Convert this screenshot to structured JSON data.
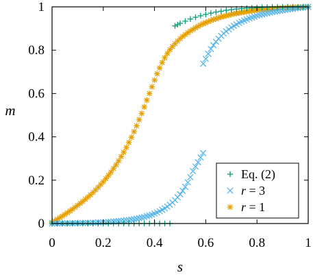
{
  "chart_data": {
    "type": "scatter",
    "xlabel": "s",
    "ylabel": "m",
    "xlim": [
      0,
      1
    ],
    "ylim": [
      0,
      1
    ],
    "x_ticks": [
      "0",
      "0.2",
      "0.4",
      "0.6",
      "0.8",
      "1"
    ],
    "y_ticks": [
      "0",
      "0.2",
      "0.4",
      "0.6",
      "0.8",
      "1"
    ],
    "grid": false,
    "legend_position": "bottom-right",
    "series": [
      {
        "name": "Eq. (2)",
        "marker": "plus",
        "color": "#009e73",
        "points": [
          [
            0.0,
            0.0
          ],
          [
            0.02,
            0.0
          ],
          [
            0.04,
            0.0
          ],
          [
            0.06,
            0.0
          ],
          [
            0.08,
            0.0
          ],
          [
            0.1,
            0.0
          ],
          [
            0.12,
            0.0
          ],
          [
            0.14,
            0.0
          ],
          [
            0.16,
            0.0
          ],
          [
            0.18,
            0.0
          ],
          [
            0.2,
            0.0
          ],
          [
            0.22,
            0.0
          ],
          [
            0.24,
            0.0
          ],
          [
            0.26,
            0.0
          ],
          [
            0.28,
            0.0
          ],
          [
            0.3,
            0.0
          ],
          [
            0.32,
            0.0
          ],
          [
            0.34,
            0.0
          ],
          [
            0.36,
            0.0
          ],
          [
            0.38,
            0.0
          ],
          [
            0.4,
            0.0
          ],
          [
            0.42,
            0.0
          ],
          [
            0.44,
            0.0
          ],
          [
            0.46,
            0.0
          ],
          [
            0.48,
            0.912
          ],
          [
            0.49,
            0.918
          ],
          [
            0.5,
            0.924
          ],
          [
            0.52,
            0.934
          ],
          [
            0.54,
            0.944
          ],
          [
            0.56,
            0.952
          ],
          [
            0.58,
            0.959
          ],
          [
            0.6,
            0.965
          ],
          [
            0.62,
            0.971
          ],
          [
            0.64,
            0.976
          ],
          [
            0.66,
            0.98
          ],
          [
            0.68,
            0.984
          ],
          [
            0.7,
            0.987
          ],
          [
            0.72,
            0.99
          ],
          [
            0.74,
            0.992
          ],
          [
            0.76,
            0.994
          ],
          [
            0.78,
            0.995
          ],
          [
            0.8,
            0.996
          ],
          [
            0.82,
            0.997
          ],
          [
            0.84,
            0.998
          ],
          [
            0.86,
            0.999
          ],
          [
            0.88,
            0.999
          ],
          [
            0.9,
            1.0
          ],
          [
            0.92,
            1.0
          ],
          [
            0.94,
            1.0
          ],
          [
            0.96,
            1.0
          ],
          [
            0.98,
            1.0
          ],
          [
            1.0,
            1.0
          ]
        ]
      },
      {
        "name": "r = 3",
        "marker": "cross",
        "color": "#56b4e9",
        "points": [
          [
            0.0,
            0.0
          ],
          [
            0.01,
            0.0
          ],
          [
            0.02,
            0.0
          ],
          [
            0.03,
            0.0
          ],
          [
            0.04,
            0.001
          ],
          [
            0.05,
            0.001
          ],
          [
            0.06,
            0.001
          ],
          [
            0.07,
            0.001
          ],
          [
            0.08,
            0.001
          ],
          [
            0.09,
            0.002
          ],
          [
            0.1,
            0.002
          ],
          [
            0.11,
            0.002
          ],
          [
            0.12,
            0.002
          ],
          [
            0.13,
            0.003
          ],
          [
            0.14,
            0.003
          ],
          [
            0.15,
            0.003
          ],
          [
            0.16,
            0.004
          ],
          [
            0.17,
            0.004
          ],
          [
            0.18,
            0.005
          ],
          [
            0.19,
            0.005
          ],
          [
            0.2,
            0.006
          ],
          [
            0.21,
            0.006
          ],
          [
            0.22,
            0.007
          ],
          [
            0.23,
            0.008
          ],
          [
            0.24,
            0.009
          ],
          [
            0.25,
            0.01
          ],
          [
            0.26,
            0.011
          ],
          [
            0.27,
            0.012
          ],
          [
            0.28,
            0.013
          ],
          [
            0.29,
            0.015
          ],
          [
            0.3,
            0.016
          ],
          [
            0.31,
            0.018
          ],
          [
            0.32,
            0.02
          ],
          [
            0.33,
            0.022
          ],
          [
            0.34,
            0.025
          ],
          [
            0.35,
            0.027
          ],
          [
            0.36,
            0.03
          ],
          [
            0.37,
            0.034
          ],
          [
            0.38,
            0.037
          ],
          [
            0.39,
            0.041
          ],
          [
            0.4,
            0.046
          ],
          [
            0.41,
            0.051
          ],
          [
            0.42,
            0.057
          ],
          [
            0.43,
            0.063
          ],
          [
            0.44,
            0.07
          ],
          [
            0.45,
            0.078
          ],
          [
            0.46,
            0.087
          ],
          [
            0.47,
            0.097
          ],
          [
            0.48,
            0.108
          ],
          [
            0.49,
            0.121
          ],
          [
            0.5,
            0.135
          ],
          [
            0.51,
            0.151
          ],
          [
            0.52,
            0.169
          ],
          [
            0.53,
            0.19
          ],
          [
            0.54,
            0.214
          ],
          [
            0.55,
            0.242
          ],
          [
            0.56,
            0.263
          ],
          [
            0.57,
            0.283
          ],
          [
            0.58,
            0.305
          ],
          [
            0.59,
            0.325
          ],
          [
            0.59,
            0.738
          ],
          [
            0.6,
            0.76
          ],
          [
            0.61,
            0.783
          ],
          [
            0.62,
            0.805
          ],
          [
            0.63,
            0.823
          ],
          [
            0.64,
            0.839
          ],
          [
            0.65,
            0.853
          ],
          [
            0.66,
            0.866
          ],
          [
            0.67,
            0.877
          ],
          [
            0.68,
            0.887
          ],
          [
            0.69,
            0.896
          ],
          [
            0.7,
            0.905
          ],
          [
            0.71,
            0.912
          ],
          [
            0.72,
            0.919
          ],
          [
            0.73,
            0.926
          ],
          [
            0.74,
            0.932
          ],
          [
            0.75,
            0.937
          ],
          [
            0.76,
            0.942
          ],
          [
            0.77,
            0.947
          ],
          [
            0.78,
            0.951
          ],
          [
            0.79,
            0.955
          ],
          [
            0.8,
            0.959
          ],
          [
            0.81,
            0.962
          ],
          [
            0.82,
            0.965
          ],
          [
            0.83,
            0.968
          ],
          [
            0.84,
            0.971
          ],
          [
            0.85,
            0.974
          ],
          [
            0.86,
            0.976
          ],
          [
            0.87,
            0.978
          ],
          [
            0.88,
            0.98
          ],
          [
            0.89,
            0.982
          ],
          [
            0.9,
            0.984
          ],
          [
            0.91,
            0.986
          ],
          [
            0.92,
            0.988
          ],
          [
            0.93,
            0.99
          ],
          [
            0.94,
            0.991
          ],
          [
            0.95,
            0.993
          ],
          [
            0.96,
            0.994
          ],
          [
            0.97,
            0.996
          ],
          [
            0.98,
            0.997
          ],
          [
            0.99,
            0.999
          ],
          [
            1.0,
            1.0
          ]
        ]
      },
      {
        "name": "r = 1",
        "marker": "star",
        "color": "#e69f00",
        "points": [
          [
            0.0,
            0.005
          ],
          [
            0.01,
            0.012
          ],
          [
            0.02,
            0.019
          ],
          [
            0.03,
            0.027
          ],
          [
            0.04,
            0.034
          ],
          [
            0.05,
            0.042
          ],
          [
            0.06,
            0.05
          ],
          [
            0.07,
            0.058
          ],
          [
            0.08,
            0.066
          ],
          [
            0.09,
            0.075
          ],
          [
            0.1,
            0.084
          ],
          [
            0.11,
            0.093
          ],
          [
            0.12,
            0.102
          ],
          [
            0.13,
            0.112
          ],
          [
            0.14,
            0.122
          ],
          [
            0.15,
            0.132
          ],
          [
            0.16,
            0.143
          ],
          [
            0.17,
            0.155
          ],
          [
            0.18,
            0.167
          ],
          [
            0.19,
            0.18
          ],
          [
            0.2,
            0.193
          ],
          [
            0.21,
            0.207
          ],
          [
            0.22,
            0.222
          ],
          [
            0.23,
            0.237
          ],
          [
            0.24,
            0.254
          ],
          [
            0.25,
            0.271
          ],
          [
            0.26,
            0.289
          ],
          [
            0.27,
            0.309
          ],
          [
            0.28,
            0.329
          ],
          [
            0.29,
            0.351
          ],
          [
            0.3,
            0.374
          ],
          [
            0.31,
            0.398
          ],
          [
            0.32,
            0.424
          ],
          [
            0.33,
            0.451
          ],
          [
            0.34,
            0.479
          ],
          [
            0.35,
            0.508
          ],
          [
            0.36,
            0.538
          ],
          [
            0.37,
            0.569
          ],
          [
            0.38,
            0.6
          ],
          [
            0.39,
            0.631
          ],
          [
            0.4,
            0.662
          ],
          [
            0.41,
            0.691
          ],
          [
            0.42,
            0.718
          ],
          [
            0.43,
            0.743
          ],
          [
            0.44,
            0.765
          ],
          [
            0.45,
            0.785
          ],
          [
            0.46,
            0.802
          ],
          [
            0.47,
            0.817
          ],
          [
            0.48,
            0.83
          ],
          [
            0.49,
            0.842
          ],
          [
            0.5,
            0.853
          ],
          [
            0.51,
            0.863
          ],
          [
            0.52,
            0.872
          ],
          [
            0.53,
            0.881
          ],
          [
            0.54,
            0.889
          ],
          [
            0.55,
            0.896
          ],
          [
            0.56,
            0.903
          ],
          [
            0.57,
            0.91
          ],
          [
            0.58,
            0.916
          ],
          [
            0.59,
            0.922
          ],
          [
            0.6,
            0.927
          ],
          [
            0.61,
            0.932
          ],
          [
            0.62,
            0.937
          ],
          [
            0.63,
            0.941
          ],
          [
            0.64,
            0.945
          ],
          [
            0.65,
            0.949
          ],
          [
            0.66,
            0.953
          ],
          [
            0.67,
            0.956
          ],
          [
            0.68,
            0.959
          ],
          [
            0.69,
            0.962
          ],
          [
            0.7,
            0.965
          ],
          [
            0.71,
            0.968
          ],
          [
            0.72,
            0.97
          ],
          [
            0.73,
            0.972
          ],
          [
            0.74,
            0.974
          ],
          [
            0.75,
            0.976
          ],
          [
            0.76,
            0.978
          ],
          [
            0.77,
            0.98
          ],
          [
            0.78,
            0.982
          ],
          [
            0.79,
            0.983
          ],
          [
            0.8,
            0.985
          ],
          [
            0.81,
            0.986
          ],
          [
            0.82,
            0.987
          ],
          [
            0.83,
            0.988
          ],
          [
            0.84,
            0.989
          ],
          [
            0.85,
            0.99
          ],
          [
            0.86,
            0.991
          ],
          [
            0.87,
            0.992
          ],
          [
            0.88,
            0.993
          ],
          [
            0.89,
            0.994
          ],
          [
            0.9,
            0.995
          ],
          [
            0.91,
            0.995
          ],
          [
            0.92,
            0.996
          ],
          [
            0.93,
            0.997
          ],
          [
            0.94,
            0.997
          ],
          [
            0.95,
            0.998
          ],
          [
            0.96,
            0.998
          ],
          [
            0.97,
            0.999
          ],
          [
            0.98,
            0.999
          ],
          [
            0.99,
            1.0
          ],
          [
            1.0,
            1.0
          ]
        ]
      }
    ],
    "legend": {
      "entries": [
        {
          "series": 0,
          "label_main": "Eq. (2)",
          "label_var": "",
          "label_rest": ""
        },
        {
          "series": 1,
          "label_main": "",
          "label_var": "r",
          "label_rest": " = 3"
        },
        {
          "series": 2,
          "label_main": "",
          "label_var": "r",
          "label_rest": " = 1"
        }
      ]
    }
  }
}
